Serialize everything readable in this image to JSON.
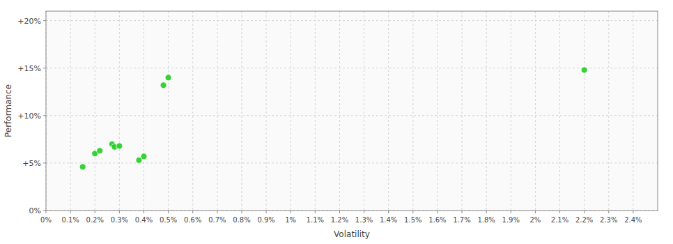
{
  "chart_data": {
    "type": "scatter",
    "x_label": "Volatility",
    "y_label": "Performance",
    "color": "#22cc22",
    "grid": true,
    "x": [
      0.15,
      0.2,
      0.22,
      0.27,
      0.28,
      0.3,
      0.38,
      0.4,
      0.48,
      0.5,
      2.2
    ],
    "values": [
      4.6,
      6.0,
      6.3,
      7.0,
      6.7,
      6.8,
      5.3,
      5.7,
      13.2,
      14.0,
      14.8
    ],
    "xlim": [
      0.0,
      2.5
    ],
    "ylim": [
      0.0,
      21.0
    ],
    "xticks": [
      {
        "value": 0.0,
        "label": "0%"
      },
      {
        "value": 0.1,
        "label": "0.1%"
      },
      {
        "value": 0.2,
        "label": "0.2%"
      },
      {
        "value": 0.3,
        "label": "0.3%"
      },
      {
        "value": 0.4,
        "label": "0.4%"
      },
      {
        "value": 0.5,
        "label": "0.5%"
      },
      {
        "value": 0.6,
        "label": "0.6%"
      },
      {
        "value": 0.7,
        "label": "0.7%"
      },
      {
        "value": 0.8,
        "label": "0.8%"
      },
      {
        "value": 0.9,
        "label": "0.9%"
      },
      {
        "value": 1.0,
        "label": "1%"
      },
      {
        "value": 1.1,
        "label": "1.1%"
      },
      {
        "value": 1.2,
        "label": "1.2%"
      },
      {
        "value": 1.3,
        "label": "1.3%"
      },
      {
        "value": 1.4,
        "label": "1.4%"
      },
      {
        "value": 1.5,
        "label": "1.5%"
      },
      {
        "value": 1.6,
        "label": "1.6%"
      },
      {
        "value": 1.7,
        "label": "1.7%"
      },
      {
        "value": 1.8,
        "label": "1.8%"
      },
      {
        "value": 1.9,
        "label": "1.9%"
      },
      {
        "value": 2.0,
        "label": "2%"
      },
      {
        "value": 2.1,
        "label": "2.1%"
      },
      {
        "value": 2.2,
        "label": "2.2%"
      },
      {
        "value": 2.3,
        "label": "2.3%"
      },
      {
        "value": 2.4,
        "label": "2.4%"
      }
    ],
    "yticks": [
      {
        "value": 0,
        "label": "0%"
      },
      {
        "value": 5,
        "label": "+5%"
      },
      {
        "value": 10,
        "label": "+10%"
      },
      {
        "value": 15,
        "label": "+15%"
      },
      {
        "value": 20,
        "label": "+20%"
      }
    ]
  }
}
